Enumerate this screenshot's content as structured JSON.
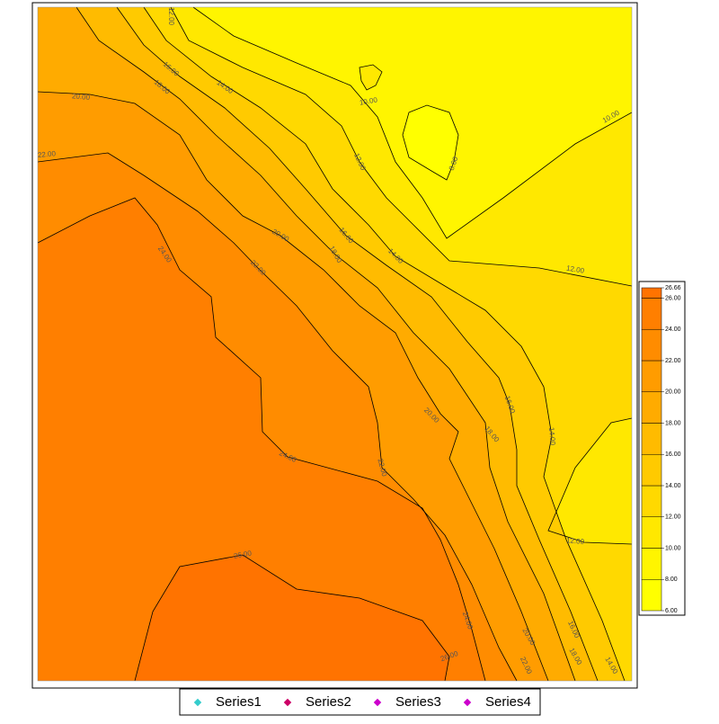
{
  "chart_data": {
    "type": "contour",
    "levels": [
      8,
      10,
      12,
      14,
      16,
      18,
      20,
      22,
      24,
      26
    ],
    "colorbar": {
      "lim": [
        6,
        26.66
      ],
      "ticks": [
        {
          "value": 6,
          "label": "6.00"
        },
        {
          "value": 8,
          "label": "8.00"
        },
        {
          "value": 10,
          "label": "10.00"
        },
        {
          "value": 12,
          "label": "12.00"
        },
        {
          "value": 14,
          "label": "14.00"
        },
        {
          "value": 16,
          "label": "16.00"
        },
        {
          "value": 18,
          "label": "18.00"
        },
        {
          "value": 20,
          "label": "20.00"
        },
        {
          "value": 22,
          "label": "22.00"
        },
        {
          "value": 24,
          "label": "24.00"
        },
        {
          "value": 26,
          "label": "26.00"
        },
        {
          "value": 26.66,
          "label": "26.66"
        }
      ],
      "colors": [
        "#ffff00",
        "#fff500",
        "#ffe800",
        "#ffd900",
        "#ffca00",
        "#ffbb00",
        "#ffab00",
        "#ff9c00",
        "#ff8c00",
        "#ff7f00",
        "#ff7300"
      ]
    },
    "contour_labels": [
      {
        "value": 12,
        "label": "12.00"
      },
      {
        "value": 16,
        "label": "16.00"
      },
      {
        "value": 14,
        "label": "14.00"
      },
      {
        "value": 18,
        "label": "18.00"
      },
      {
        "value": 20,
        "label": "20.00"
      },
      {
        "value": 22,
        "label": "22.00"
      },
      {
        "value": 10,
        "label": "10.00"
      },
      {
        "value": 8,
        "label": "8.00"
      },
      {
        "value": 10,
        "label": "10.00"
      },
      {
        "value": 12,
        "label": "12.00"
      },
      {
        "value": 20,
        "label": "20.00"
      },
      {
        "value": 18,
        "label": "18.00"
      },
      {
        "value": 16,
        "label": "16.00"
      },
      {
        "value": 14,
        "label": "14.00"
      },
      {
        "value": 24,
        "label": "24.00"
      },
      {
        "value": 22,
        "label": "22.00"
      },
      {
        "value": 12,
        "label": "12.00"
      },
      {
        "value": 20,
        "label": "20.00"
      },
      {
        "value": 16,
        "label": "16.00"
      },
      {
        "value": 18,
        "label": "18.00"
      },
      {
        "value": 14,
        "label": "14.00"
      },
      {
        "value": 24,
        "label": "24.00"
      },
      {
        "value": 22,
        "label": "22.00"
      },
      {
        "value": 12,
        "label": "12.00"
      },
      {
        "value": 26,
        "label": "26.00"
      },
      {
        "value": 24,
        "label": "24.00"
      },
      {
        "value": 20,
        "label": "20.00"
      },
      {
        "value": 16,
        "label": "16.00"
      },
      {
        "value": 22,
        "label": "22.00"
      },
      {
        "value": 18,
        "label": "18.00"
      },
      {
        "value": 14,
        "label": "14.00"
      },
      {
        "value": 26,
        "label": "26.00"
      }
    ],
    "series": [
      {
        "name": "Series1",
        "color": "#33cccc"
      },
      {
        "name": "Series2",
        "color": "#cc0066"
      },
      {
        "name": "Series3",
        "color": "#cc00cc"
      },
      {
        "name": "Series4",
        "color": "#cc00cc"
      }
    ]
  }
}
